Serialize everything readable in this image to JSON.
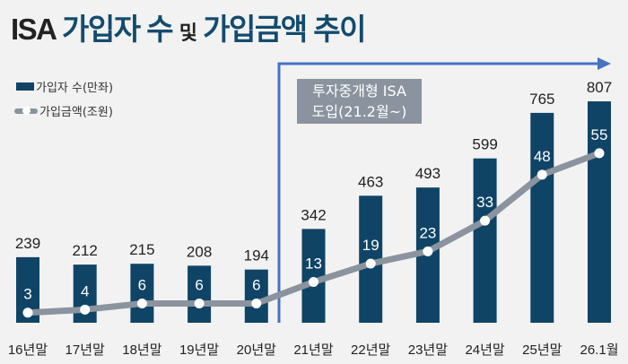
{
  "title": {
    "part1": "ISA",
    "part2": "가입자 수",
    "part3": "및",
    "part4": "가입금액 추이"
  },
  "legend": {
    "bar": "가입자 수(만좌)",
    "line": "가입금액(조원)"
  },
  "annotation": {
    "line1": "투자중개형 ISA",
    "line2": "도입(21.2월~)"
  },
  "colors": {
    "bar": "#0f4466",
    "line": "#8a939e",
    "bracket": "#4472c4",
    "background": "#f2f2f2"
  },
  "chart_data": {
    "type": "bar+line",
    "categories": [
      "16년말",
      "17년말",
      "18년말",
      "19년말",
      "20년말",
      "21년말",
      "22년말",
      "23년말",
      "24년말",
      "25년말",
      "26.1월"
    ],
    "series": [
      {
        "name": "가입자 수(만좌)",
        "type": "bar",
        "values": [
          239,
          212,
          215,
          208,
          194,
          342,
          463,
          493,
          599,
          765,
          807
        ]
      },
      {
        "name": "가입금액(조원)",
        "type": "line",
        "values": [
          3,
          4,
          6,
          6,
          6,
          13,
          19,
          23,
          33,
          48,
          55
        ]
      }
    ],
    "grid": false,
    "legend_position": "top-left"
  }
}
